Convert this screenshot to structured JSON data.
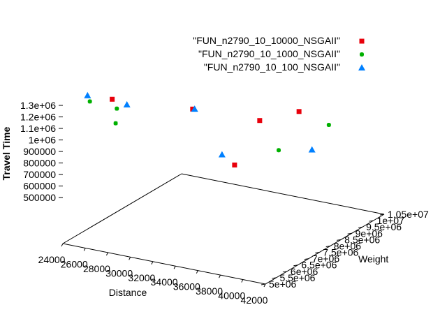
{
  "chart_data": {
    "type": "scatter3d",
    "title": "",
    "xlabel": "Distance",
    "ylabel": "Weight",
    "zlabel": "Travel Time",
    "xlim": [
      24000,
      42000
    ],
    "ylim": [
      5000000,
      10500000
    ],
    "zlim": [
      500000,
      1300000
    ],
    "legend_position": "top-right",
    "x_ticks": [
      {
        "value": 24000,
        "label": "24000"
      },
      {
        "value": 26000,
        "label": "26000"
      },
      {
        "value": 28000,
        "label": "28000"
      },
      {
        "value": 30000,
        "label": "30000"
      },
      {
        "value": 32000,
        "label": "32000"
      },
      {
        "value": 34000,
        "label": "34000"
      },
      {
        "value": 36000,
        "label": "36000"
      },
      {
        "value": 38000,
        "label": "38000"
      },
      {
        "value": 40000,
        "label": "40000"
      },
      {
        "value": 42000,
        "label": "42000"
      }
    ],
    "y_ticks": [
      {
        "value": 5000000,
        "label": "5e+06"
      },
      {
        "value": 5500000,
        "label": "5.5e+06"
      },
      {
        "value": 6000000,
        "label": "6e+06"
      },
      {
        "value": 6500000,
        "label": "6.5e+06"
      },
      {
        "value": 7000000,
        "label": "7e+06"
      },
      {
        "value": 7500000,
        "label": "7.5e+06"
      },
      {
        "value": 8000000,
        "label": "8e+06"
      },
      {
        "value": 8500000,
        "label": "8.5e+06"
      },
      {
        "value": 9000000,
        "label": "9e+06"
      },
      {
        "value": 9500000,
        "label": "9.5e+06"
      },
      {
        "value": 10000000,
        "label": "1e+07"
      },
      {
        "value": 10500000,
        "label": "1.05e+07"
      }
    ],
    "z_ticks": [
      {
        "value": 500000,
        "label": "500000"
      },
      {
        "value": 600000,
        "label": "600000"
      },
      {
        "value": 700000,
        "label": "700000"
      },
      {
        "value": 800000,
        "label": "800000"
      },
      {
        "value": 900000,
        "label": "900000"
      },
      {
        "value": 1000000,
        "label": "1e+06"
      },
      {
        "value": 1100000,
        "label": "1.1e+06"
      },
      {
        "value": 1200000,
        "label": "1.2e+06"
      },
      {
        "value": 1300000,
        "label": "1.3e+06"
      }
    ],
    "series": [
      {
        "name": "\"FUN_n2790_10_10000_NSGAII\"",
        "marker": "square",
        "color": "#e8000b",
        "points": [
          {
            "x": 28000,
            "y": 5200000,
            "z": 1300000
          },
          {
            "x": 34000,
            "y": 5800000,
            "z": 1270000
          },
          {
            "x": 39000,
            "y": 6300000,
            "z": 1220000
          },
          {
            "x": 36000,
            "y": 6700000,
            "z": 790000
          },
          {
            "x": 40000,
            "y": 7600000,
            "z": 1180000
          }
        ]
      },
      {
        "name": "\"FUN_n2790_10_1000_NSGAII\"",
        "marker": "star",
        "color": "#00b000",
        "points": [
          {
            "x": 26400,
            "y": 5000000,
            "z": 1275000
          },
          {
            "x": 28700,
            "y": 5050000,
            "z": 1255000
          },
          {
            "x": 28500,
            "y": 5100000,
            "z": 1135000
          },
          {
            "x": 38000,
            "y": 7700000,
            "z": 840000
          },
          {
            "x": 41500,
            "y": 8200000,
            "z": 1045000
          }
        ]
      },
      {
        "name": "\"FUN_n2790_10_100_NSGAII\"",
        "marker": "triangle",
        "color": "#0080ff",
        "points": [
          {
            "x": 26000,
            "y": 5100000,
            "z": 1305000
          },
          {
            "x": 29500,
            "y": 5100000,
            "z": 1295000
          },
          {
            "x": 33600,
            "y": 6100000,
            "z": 1235000
          },
          {
            "x": 36800,
            "y": 5700000,
            "z": 980000
          },
          {
            "x": 40000,
            "y": 8200000,
            "z": 830000
          }
        ]
      }
    ]
  }
}
